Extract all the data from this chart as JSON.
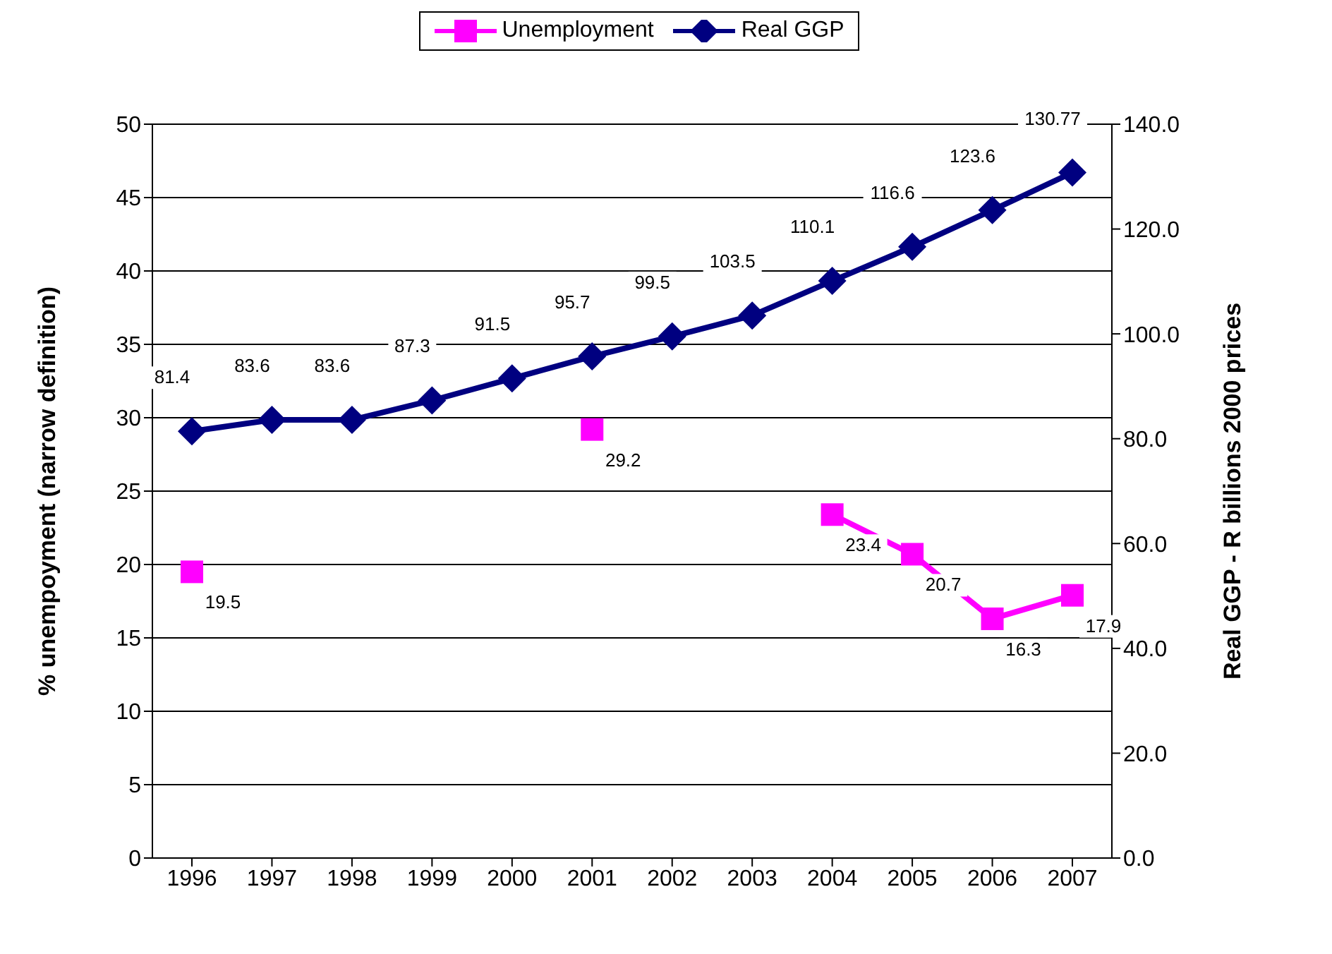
{
  "chart_data": {
    "type": "line",
    "categories": [
      "1996",
      "1997",
      "1998",
      "1999",
      "2000",
      "2001",
      "2002",
      "2003",
      "2004",
      "2005",
      "2006",
      "2007"
    ],
    "ylabel": "% unempoyment (narrow definition)",
    "y2label": "Real GGP - R billions 2000 prices",
    "ylim": [
      0,
      50
    ],
    "yticks": [
      0,
      5,
      10,
      15,
      20,
      25,
      30,
      35,
      40,
      45,
      50
    ],
    "y2lim": [
      0,
      140
    ],
    "y2ticks": [
      {
        "value": 0,
        "label": "0.0"
      },
      {
        "value": 20,
        "label": "20.0"
      },
      {
        "value": 40,
        "label": "40.0"
      },
      {
        "value": 60,
        "label": "60.0"
      },
      {
        "value": 80,
        "label": "80.0"
      },
      {
        "value": 100,
        "label": "100.0"
      },
      {
        "value": 120,
        "label": "120.0"
      },
      {
        "value": 140,
        "label": "140.0"
      }
    ],
    "series": [
      {
        "name": "Unemployment",
        "color": "#ff00ff",
        "marker": "square",
        "values": [
          19.5,
          null,
          null,
          null,
          null,
          29.2,
          null,
          null,
          23.4,
          20.7,
          16.3,
          17.9
        ]
      },
      {
        "name": "Real GGP",
        "color": "#000080",
        "marker": "diamond",
        "axis": "y2",
        "values": [
          81.4,
          83.6,
          83.6,
          87.3,
          91.5,
          95.7,
          99.5,
          103.5,
          110.1,
          116.6,
          123.6,
          130.77
        ]
      }
    ],
    "data_labels": true,
    "grid": "y",
    "legend": "top"
  }
}
